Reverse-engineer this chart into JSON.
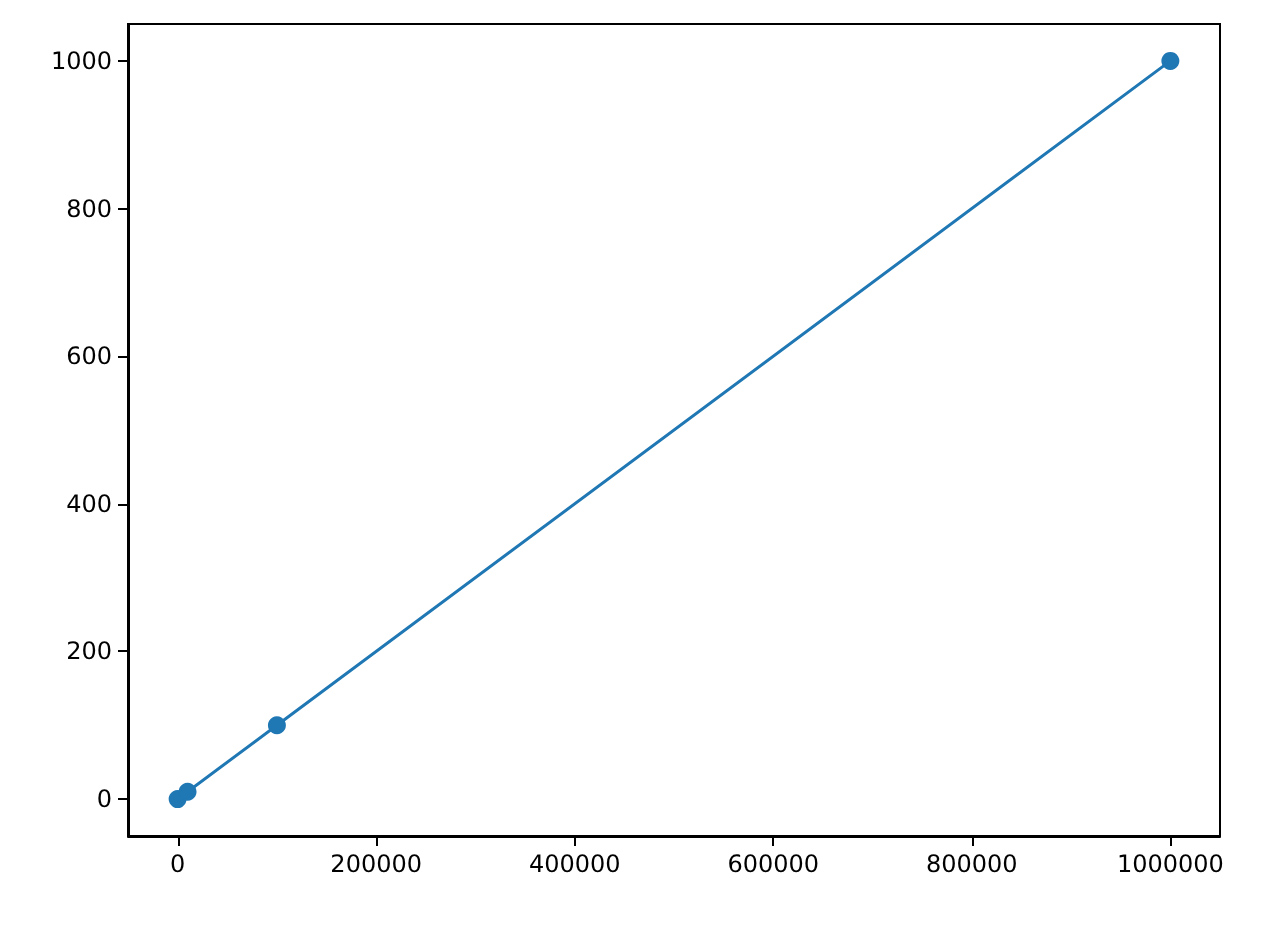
{
  "chart_data": {
    "type": "line",
    "x": [
      0,
      10000,
      100000,
      1000000
    ],
    "series": [
      {
        "color": "#1f77b4",
        "values": [
          0,
          10,
          100,
          1000
        ]
      }
    ],
    "xlim": [
      -50000,
      1050000
    ],
    "xticks": [
      0,
      200000,
      400000,
      600000,
      800000,
      1000000
    ],
    "ylim": [
      -50,
      1050
    ],
    "yticks": [
      0,
      200,
      400,
      600,
      800,
      1000
    ],
    "marker": "circle",
    "grid": false
  }
}
